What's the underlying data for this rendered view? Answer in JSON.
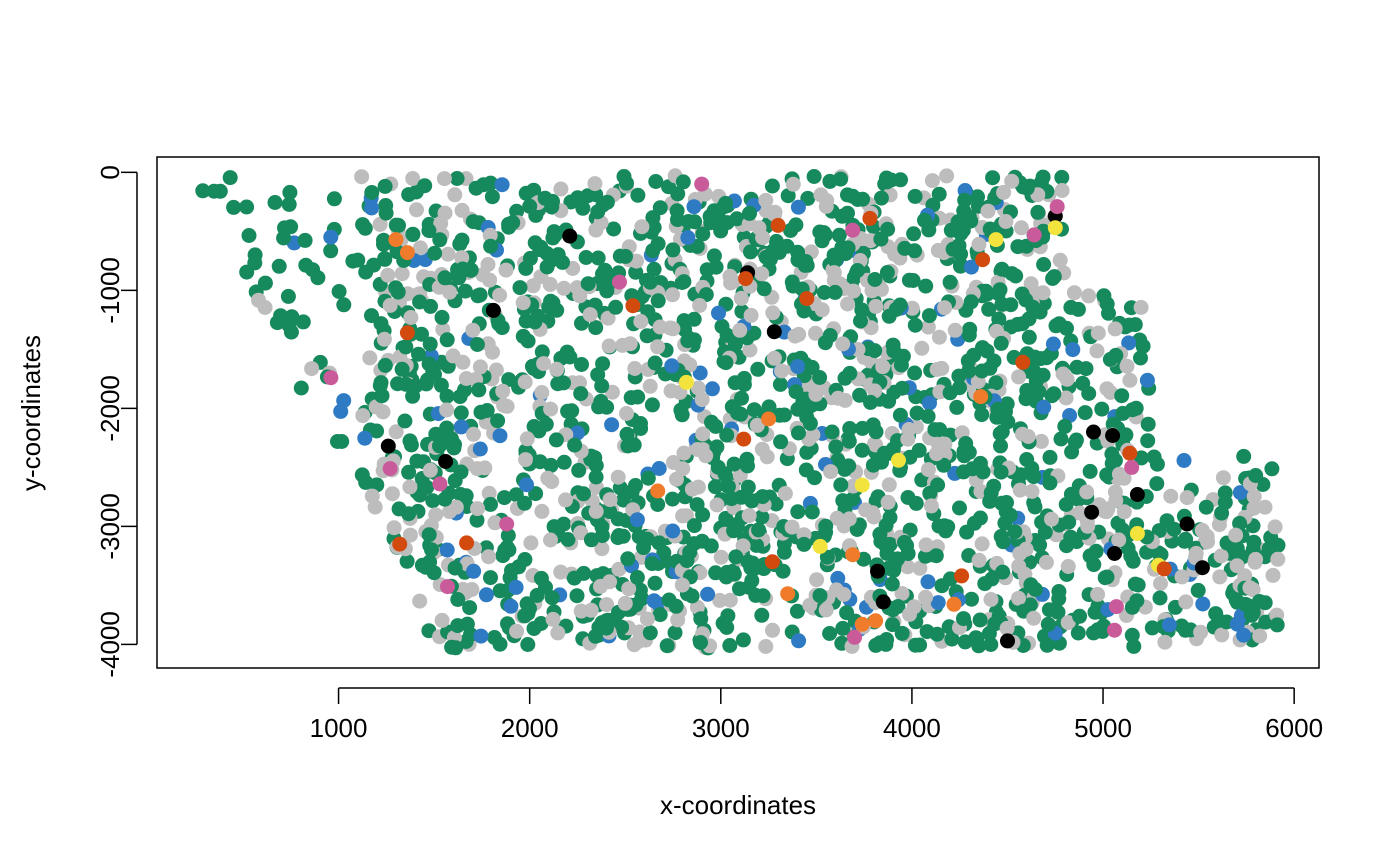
{
  "chart_data": {
    "type": "scatter",
    "title": "",
    "xlabel": "x-coordinates",
    "ylabel": "y-coordinates",
    "xlim": [
      50,
      6130
    ],
    "ylim": [
      -4200,
      130
    ],
    "xticks": [
      1000,
      2000,
      3000,
      4000,
      5000,
      6000
    ],
    "yticks": [
      0,
      -1000,
      -2000,
      -3000,
      -4000
    ],
    "xtick_labels": [
      "1000",
      "2000",
      "3000",
      "4000",
      "5000",
      "6000"
    ],
    "ytick_labels": [
      "0",
      "-1000",
      "-2000",
      "-3000",
      "-4000"
    ],
    "grid": false,
    "legend": "none",
    "colors": {
      "green": "#168a5c",
      "grey": "#bdbdbd",
      "blue": "#2e7bc4",
      "darkorange": "#d34a0f",
      "orange": "#f07b2a",
      "pink": "#c95b9b",
      "black": "#000000",
      "yellow": "#f2e33d"
    },
    "approx_point_count": 2200,
    "category_shares": {
      "green": 0.58,
      "grey": 0.3,
      "blue": 0.05,
      "darkorange": 0.02,
      "orange": 0.015,
      "pink": 0.015,
      "black": 0.015,
      "yellow": 0.01
    },
    "highlight_points": [
      {
        "x": 1260,
        "y": -2320,
        "cat": "black"
      },
      {
        "x": 1560,
        "y": -2450,
        "cat": "black"
      },
      {
        "x": 1810,
        "y": -1170,
        "cat": "black"
      },
      {
        "x": 2210,
        "y": -540,
        "cat": "black"
      },
      {
        "x": 3140,
        "y": -850,
        "cat": "black"
      },
      {
        "x": 3280,
        "y": -1350,
        "cat": "black"
      },
      {
        "x": 3820,
        "y": -3380,
        "cat": "black"
      },
      {
        "x": 3850,
        "y": -3640,
        "cat": "black"
      },
      {
        "x": 4500,
        "y": -3970,
        "cat": "black"
      },
      {
        "x": 4750,
        "y": -370,
        "cat": "black"
      },
      {
        "x": 4940,
        "y": -2880,
        "cat": "black"
      },
      {
        "x": 4950,
        "y": -2200,
        "cat": "black"
      },
      {
        "x": 5050,
        "y": -2230,
        "cat": "black"
      },
      {
        "x": 5060,
        "y": -3230,
        "cat": "black"
      },
      {
        "x": 5180,
        "y": -2730,
        "cat": "black"
      },
      {
        "x": 5440,
        "y": -2980,
        "cat": "black"
      },
      {
        "x": 5520,
        "y": -3350,
        "cat": "black"
      },
      {
        "x": 4750,
        "y": -470,
        "cat": "yellow"
      },
      {
        "x": 4440,
        "y": -570,
        "cat": "yellow"
      },
      {
        "x": 2820,
        "y": -1780,
        "cat": "yellow"
      },
      {
        "x": 3930,
        "y": -2440,
        "cat": "yellow"
      },
      {
        "x": 3740,
        "y": -2650,
        "cat": "yellow"
      },
      {
        "x": 5180,
        "y": -3060,
        "cat": "yellow"
      },
      {
        "x": 5290,
        "y": -3330,
        "cat": "yellow"
      },
      {
        "x": 3520,
        "y": -3170,
        "cat": "yellow"
      },
      {
        "x": 1300,
        "y": -570,
        "cat": "orange"
      },
      {
        "x": 1360,
        "y": -680,
        "cat": "orange"
      },
      {
        "x": 2670,
        "y": -2700,
        "cat": "orange"
      },
      {
        "x": 3250,
        "y": -2090,
        "cat": "orange"
      },
      {
        "x": 3690,
        "y": -3240,
        "cat": "orange"
      },
      {
        "x": 3740,
        "y": -3830,
        "cat": "orange"
      },
      {
        "x": 3810,
        "y": -3800,
        "cat": "orange"
      },
      {
        "x": 4220,
        "y": -3660,
        "cat": "orange"
      },
      {
        "x": 3350,
        "y": -3570,
        "cat": "orange"
      },
      {
        "x": 4360,
        "y": -1900,
        "cat": "orange"
      },
      {
        "x": 1360,
        "y": -1360,
        "cat": "darkorange"
      },
      {
        "x": 1320,
        "y": -3150,
        "cat": "darkorange"
      },
      {
        "x": 1670,
        "y": -3140,
        "cat": "darkorange"
      },
      {
        "x": 2540,
        "y": -1130,
        "cat": "darkorange"
      },
      {
        "x": 3130,
        "y": -900,
        "cat": "darkorange"
      },
      {
        "x": 3300,
        "y": -450,
        "cat": "darkorange"
      },
      {
        "x": 3450,
        "y": -1070,
        "cat": "darkorange"
      },
      {
        "x": 3780,
        "y": -390,
        "cat": "darkorange"
      },
      {
        "x": 4370,
        "y": -740,
        "cat": "darkorange"
      },
      {
        "x": 4580,
        "y": -1610,
        "cat": "darkorange"
      },
      {
        "x": 3270,
        "y": -3300,
        "cat": "darkorange"
      },
      {
        "x": 4260,
        "y": -3420,
        "cat": "darkorange"
      },
      {
        "x": 5140,
        "y": -2380,
        "cat": "darkorange"
      },
      {
        "x": 5320,
        "y": -3360,
        "cat": "darkorange"
      },
      {
        "x": 3120,
        "y": -2260,
        "cat": "darkorange"
      },
      {
        "x": 960,
        "y": -1740,
        "cat": "pink"
      },
      {
        "x": 1270,
        "y": -2510,
        "cat": "pink"
      },
      {
        "x": 1530,
        "y": -2640,
        "cat": "pink"
      },
      {
        "x": 1570,
        "y": -3510,
        "cat": "pink"
      },
      {
        "x": 1880,
        "y": -2980,
        "cat": "pink"
      },
      {
        "x": 2470,
        "y": -930,
        "cat": "pink"
      },
      {
        "x": 2900,
        "y": -100,
        "cat": "pink"
      },
      {
        "x": 3690,
        "y": -490,
        "cat": "pink"
      },
      {
        "x": 3700,
        "y": -3940,
        "cat": "pink"
      },
      {
        "x": 4760,
        "y": -290,
        "cat": "pink"
      },
      {
        "x": 4640,
        "y": -530,
        "cat": "pink"
      },
      {
        "x": 5150,
        "y": -2500,
        "cat": "pink"
      },
      {
        "x": 5070,
        "y": -3680,
        "cat": "pink"
      },
      {
        "x": 5060,
        "y": -3880,
        "cat": "pink"
      }
    ]
  }
}
